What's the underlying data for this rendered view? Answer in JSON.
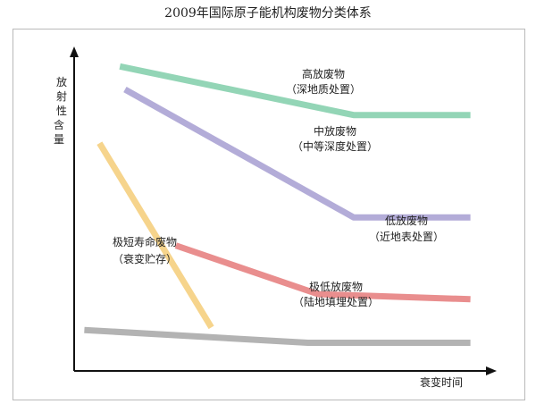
{
  "title": "2009年国际原子能机构废物分类体系",
  "chart_data": {
    "type": "line",
    "title": "2009年国际原子能机构废物分类体系",
    "xlabel": "衰变时间",
    "ylabel": "放射性含量",
    "ylabel_chars": [
      "放",
      "射",
      "性",
      "含",
      "量"
    ],
    "grid": false,
    "axis_ticks": false,
    "series": [
      {
        "name": "高放废物",
        "sublabel": "（深地质处置）",
        "color": "#93d5b6",
        "points": [
          [
            0.9,
            11.9
          ],
          [
            5.5,
            10.0
          ],
          [
            7.8,
            10.0
          ]
        ]
      },
      {
        "name": "中放废物",
        "sublabel": "（中等深度处置）",
        "color": "#b3acd8",
        "points": [
          [
            1.0,
            11.0
          ],
          [
            5.5,
            6.0
          ],
          [
            7.8,
            6.0
          ]
        ]
      },
      {
        "name": "低放废物",
        "sublabel": "（近地表处置）",
        "color": "#e98e8e",
        "points": [
          [
            2.0,
            4.9
          ],
          [
            4.8,
            3.0
          ],
          [
            7.8,
            2.8
          ]
        ]
      },
      {
        "name": "极低放废物",
        "sublabel": "（陆地填埋处置）",
        "color": "#b3b3b3",
        "points": [
          [
            0.2,
            1.6
          ],
          [
            4.6,
            1.1
          ],
          [
            7.8,
            1.1
          ]
        ]
      },
      {
        "name": "极短寿命废物",
        "sublabel": "（衰变贮存）",
        "color": "#f6d48c",
        "points": [
          [
            0.5,
            8.9
          ],
          [
            2.7,
            1.7
          ]
        ]
      }
    ]
  }
}
